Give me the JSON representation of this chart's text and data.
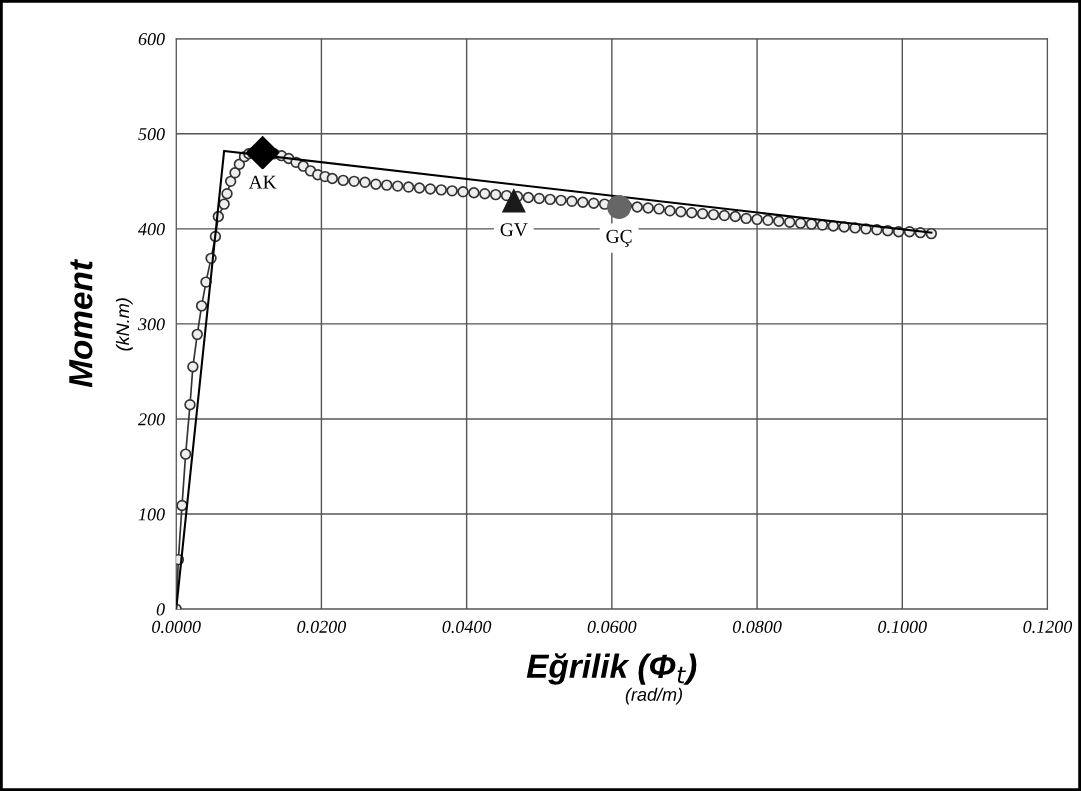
{
  "chart_data": {
    "type": "line",
    "xlabel": "Eğrilik (Φ$_{t}$)",
    "ylabel": "Moment",
    "annotations": [
      "(rad/m)",
      "(kN.m)"
    ],
    "xlim": [
      0,
      0.12
    ],
    "ylim": [
      0,
      600
    ],
    "xticks": [
      {
        "value": 0,
        "label": "0.0000"
      },
      {
        "value": 0.02,
        "label": "0.0200"
      },
      {
        "value": 0.04,
        "label": "0.0400"
      },
      {
        "value": 0.06,
        "label": "0.0600"
      },
      {
        "value": 0.08,
        "label": "0.0800"
      },
      {
        "value": 0.1,
        "label": "0.1000"
      },
      {
        "value": 0.12,
        "label": "0.1200"
      }
    ],
    "yticks": [
      0,
      100,
      200,
      300,
      400,
      500,
      600
    ],
    "grid": true,
    "series": [
      {
        "color": "#333333",
        "marker": "circle",
        "x": [
          0,
          0.0003,
          0.0008,
          0.0013,
          0.0019,
          0.0023,
          0.0029,
          0.0035,
          0.0041,
          0.0048,
          0.0054,
          0.0058,
          0.0066,
          0.007,
          0.0075,
          0.0081,
          0.0087,
          0.0094,
          0.01,
          0.0105,
          0.011,
          0.0125,
          0.0135,
          0.0145,
          0.0155,
          0.0165,
          0.0175,
          0.0185,
          0.0195,
          0.0205,
          0.0215,
          0.023,
          0.0245,
          0.026,
          0.0275,
          0.029,
          0.0305,
          0.032,
          0.0335,
          0.035,
          0.0365,
          0.038,
          0.0395,
          0.041,
          0.0425,
          0.044,
          0.0455,
          0.047,
          0.0485,
          0.05,
          0.0515,
          0.053,
          0.0545,
          0.056,
          0.0575,
          0.059,
          0.0605,
          0.062,
          0.0635,
          0.065,
          0.0665,
          0.068,
          0.0695,
          0.071,
          0.0725,
          0.074,
          0.0755,
          0.077,
          0.0785,
          0.08,
          0.0815,
          0.083,
          0.0845,
          0.086,
          0.0875,
          0.089,
          0.0905,
          0.092,
          0.0935,
          0.095,
          0.0965,
          0.098,
          0.0995,
          0.101,
          0.1025,
          0.104
        ],
        "values": [
          0,
          52,
          109,
          163,
          215,
          255,
          289,
          319,
          344,
          369,
          392,
          413,
          426,
          437,
          450,
          459,
          468,
          476,
          479,
          480,
          480,
          480,
          479,
          477,
          474,
          470,
          466,
          461,
          457,
          455,
          453,
          451,
          450,
          449,
          447,
          446,
          445,
          444,
          443,
          442,
          441,
          440,
          439,
          438,
          437,
          436,
          435,
          434,
          433,
          432,
          431,
          430,
          429,
          428,
          427,
          426,
          425,
          424,
          423,
          422,
          421,
          419,
          418,
          417,
          416,
          415,
          414,
          413,
          411,
          410,
          409,
          408,
          407,
          406,
          405,
          404,
          403,
          402,
          401,
          400,
          399,
          398,
          397,
          397,
          396,
          395
        ]
      },
      {
        "color": "#000000",
        "marker": "none",
        "x": [
          0,
          0.0066,
          0.104
        ],
        "values": [
          0,
          482,
          396
        ]
      },
      {
        "type": "scatter",
        "name": "AK",
        "color": "#000000",
        "marker": "diamond",
        "x": [
          0.0119
        ],
        "values": [
          480
        ]
      },
      {
        "type": "scatter",
        "name": "GV",
        "color": "#1a1a1a",
        "marker": "triangle",
        "x": [
          0.0465
        ],
        "values": [
          430
        ]
      },
      {
        "type": "scatter",
        "name": "GÇ",
        "color": "#666666",
        "marker": "circle",
        "x": [
          0.061
        ],
        "values": [
          423
        ]
      }
    ]
  }
}
